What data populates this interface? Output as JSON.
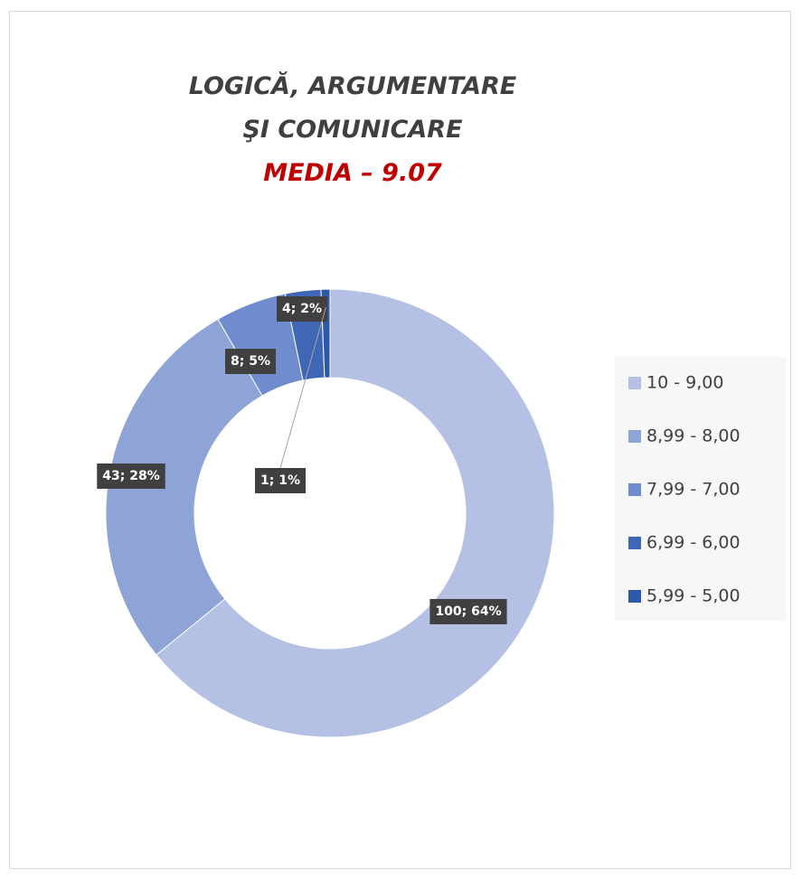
{
  "chart_data": {
    "type": "donut",
    "title": "LOGICĂ, ARGUMENTARE ŞI COMUNICARE",
    "subtitle": "MEDIA – 9.07",
    "categories": [
      "10 - 9,00",
      "8,99 - 8,00",
      "7,99 - 7,00",
      "6,99 - 6,00",
      "5,99 - 5,00"
    ],
    "values": [
      100,
      43,
      8,
      4,
      1
    ],
    "value_labels": [
      "100; 64%",
      "43; 28%",
      "8; 5%",
      "4; 2%",
      "1; 1%"
    ],
    "colors": [
      "#b4c1e4",
      "#8fa4d6",
      "#6e8cce",
      "#3f67b6",
      "#2e58aa"
    ],
    "legend": "right"
  }
}
